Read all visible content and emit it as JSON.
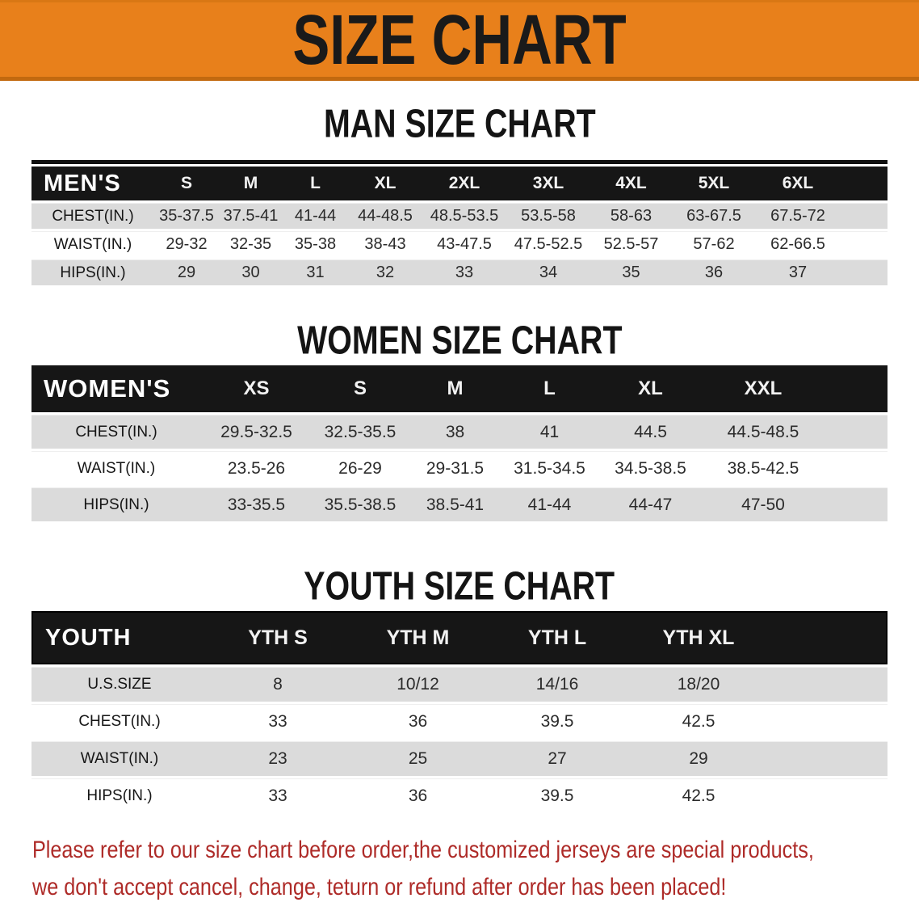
{
  "banner": {
    "title": "SIZE CHART"
  },
  "colors": {
    "banner_bg": "#E8801B",
    "table_header_bg": "#161616",
    "row_stripe_gray": "#DBDBDB",
    "disclaimer_red": "#AE2B28"
  },
  "sections": [
    {
      "heading": "MAN SIZE CHART",
      "table": {
        "headers": [
          "MEN'S",
          "S",
          "M",
          "L",
          "XL",
          "2XL",
          "3XL",
          "4XL",
          "5XL",
          "6XL"
        ],
        "rows": [
          [
            "CHEST(IN.)",
            "35-37.5",
            "37.5-41",
            "41-44",
            "44-48.5",
            "48.5-53.5",
            "53.5-58",
            "58-63",
            "63-67.5",
            "67.5-72"
          ],
          [
            "WAIST(IN.)",
            "29-32",
            "32-35",
            "35-38",
            "38-43",
            "43-47.5",
            "47.5-52.5",
            "52.5-57",
            "57-62",
            "62-66.5"
          ],
          [
            "HIPS(IN.)",
            "29",
            "30",
            "31",
            "32",
            "33",
            "34",
            "35",
            "36",
            "37"
          ]
        ]
      }
    },
    {
      "heading": "WOMEN SIZE CHART",
      "table": {
        "headers": [
          "WOMEN'S",
          "XS",
          "S",
          "M",
          "L",
          "XL",
          "XXL"
        ],
        "rows": [
          [
            "CHEST(IN.)",
            "29.5-32.5",
            "32.5-35.5",
            "38",
            "41",
            "44.5",
            "44.5-48.5"
          ],
          [
            "WAIST(IN.)",
            "23.5-26",
            "26-29",
            "29-31.5",
            "31.5-34.5",
            "34.5-38.5",
            "38.5-42.5"
          ],
          [
            "HIPS(IN.)",
            "33-35.5",
            "35.5-38.5",
            "38.5-41",
            "41-44",
            "44-47",
            "47-50"
          ]
        ]
      }
    },
    {
      "heading": "YOUTH SIZE CHART",
      "table": {
        "headers": [
          "YOUTH",
          "YTH S",
          "YTH M",
          "YTH L",
          "YTH XL"
        ],
        "rows": [
          [
            "U.S.SIZE",
            "8",
            "10/12",
            "14/16",
            "18/20"
          ],
          [
            "CHEST(IN.)",
            "33",
            "36",
            "39.5",
            "42.5"
          ],
          [
            "WAIST(IN.)",
            "23",
            "25",
            "27",
            "29"
          ],
          [
            "HIPS(IN.)",
            "33",
            "36",
            "39.5",
            "42.5"
          ]
        ]
      }
    }
  ],
  "disclaimer": {
    "line1": "Please refer to our size chart before order,the customized jerseys are special products,",
    "line2": "we don't accept cancel, change, teturn or refund after order has been placed!"
  }
}
